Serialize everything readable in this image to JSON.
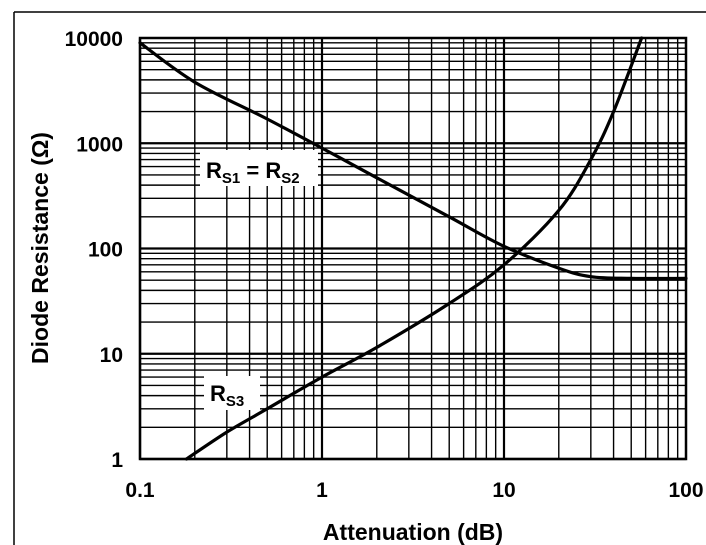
{
  "chart_data": {
    "type": "line",
    "title": "",
    "xlabel": "Attenuation (dB)",
    "ylabel": "Diode Resistance (Ω)",
    "x_scale": "log",
    "y_scale": "log",
    "xlim": [
      0.1,
      100
    ],
    "ylim": [
      1,
      10000
    ],
    "grid": true,
    "x_ticks": [
      "0.1",
      "1",
      "10",
      "100"
    ],
    "y_ticks": [
      "1",
      "10",
      "100",
      "1000",
      "10000"
    ],
    "series": [
      {
        "name": "RS1 = RS2",
        "label_main": "R",
        "label_sub1": "S1",
        "label_eq": " = R",
        "label_sub2": "S2",
        "x": [
          0.1,
          0.2,
          0.5,
          1,
          2,
          5,
          10,
          20,
          30,
          50,
          100
        ],
        "y": [
          9000,
          3800,
          1700,
          900,
          470,
          200,
          105,
          65,
          54,
          52,
          52
        ]
      },
      {
        "name": "RS3",
        "label_main": "R",
        "label_sub": "S3",
        "x": [
          0.18,
          0.3,
          0.5,
          1,
          2,
          5,
          10,
          20,
          30,
          40,
          57
        ],
        "y": [
          1,
          1.8,
          3,
          6,
          11.5,
          30,
          70,
          230,
          700,
          2000,
          10000
        ]
      }
    ]
  }
}
